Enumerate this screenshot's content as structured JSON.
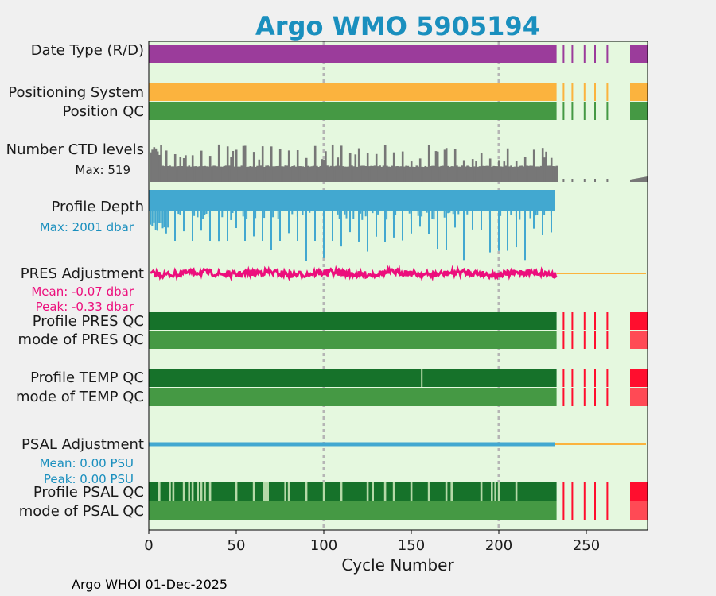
{
  "chart_data": {
    "type": "timeline",
    "title": "Argo WMO 5905194",
    "xlabel": "Cycle Number",
    "xlim": [
      0,
      285
    ],
    "xticks": [
      0,
      50,
      100,
      150,
      200,
      250
    ],
    "gridlines_x": [
      100,
      200
    ],
    "footer": "Argo WHOI 01-Dec-2025",
    "last_regular_cycle": 233,
    "sparse_cycles": [
      237,
      242,
      249,
      255,
      262
    ],
    "tail_cycles": [
      275,
      285
    ],
    "temp_qc_gap_cycle": 156,
    "psal_qc_gap_cycles": [
      6,
      12,
      14,
      20,
      23,
      25,
      28,
      30,
      32,
      35,
      50,
      60,
      66,
      67,
      68,
      78,
      80,
      90,
      100,
      110,
      125,
      128,
      135,
      140,
      150,
      160,
      170,
      173,
      190,
      196,
      198,
      200,
      210
    ],
    "rows": {
      "date_type": {
        "label": "Date Type (R/D)",
        "color": "#9b3c9b"
      },
      "positioning_system": {
        "label": "Positioning System",
        "color": "#fbb33e"
      },
      "position_qc": {
        "label": "Position QC",
        "color": "#459944"
      },
      "ctd_levels": {
        "label": "Number CTD levels",
        "max_text": "Max: 519",
        "max_value": 519,
        "color": "#777777"
      },
      "profile_depth": {
        "label": "Profile Depth",
        "max_text": "Max: 2001 dbar",
        "max_value": 2001,
        "color": "#42a8d0"
      },
      "pres_adjustment": {
        "label": "PRES Adjustment",
        "mean_text": "Mean: -0.07 dbar",
        "peak_text": "Peak: -0.33 dbar",
        "mean_value": -0.07,
        "peak_value": -0.33,
        "color": "#ec0e7c"
      },
      "profile_pres_qc": {
        "label": "Profile PRES QC",
        "color": "#16722a"
      },
      "mode_pres_qc": {
        "label": "mode of PRES QC",
        "color": "#459944"
      },
      "profile_temp_qc": {
        "label": "Profile TEMP QC",
        "color": "#16722a"
      },
      "mode_temp_qc": {
        "label": "mode of TEMP QC",
        "color": "#459944"
      },
      "psal_adjustment": {
        "label": "PSAL Adjustment",
        "mean_text": "Mean: 0.00 PSU",
        "peak_text": "Peak: 0.00 PSU",
        "mean_value": 0.0,
        "peak_value": 0.0,
        "color": "#42a8d0"
      },
      "profile_psal_qc": {
        "label": "Profile PSAL QC",
        "color": "#16722a"
      },
      "mode_psal_qc": {
        "label": "mode of PSAL QC",
        "color": "#459944"
      }
    },
    "colors": {
      "plot_bg": "#e5f8df",
      "figure_bg": "#f0f0f0",
      "title": "#1a8fbe",
      "bad_qc": "#ff0e2e",
      "bad_qc_light": "#ff4a55",
      "missing": "#fbb33e",
      "pale_green": "#b5d9a8",
      "grid": "#b5b5b5"
    }
  }
}
